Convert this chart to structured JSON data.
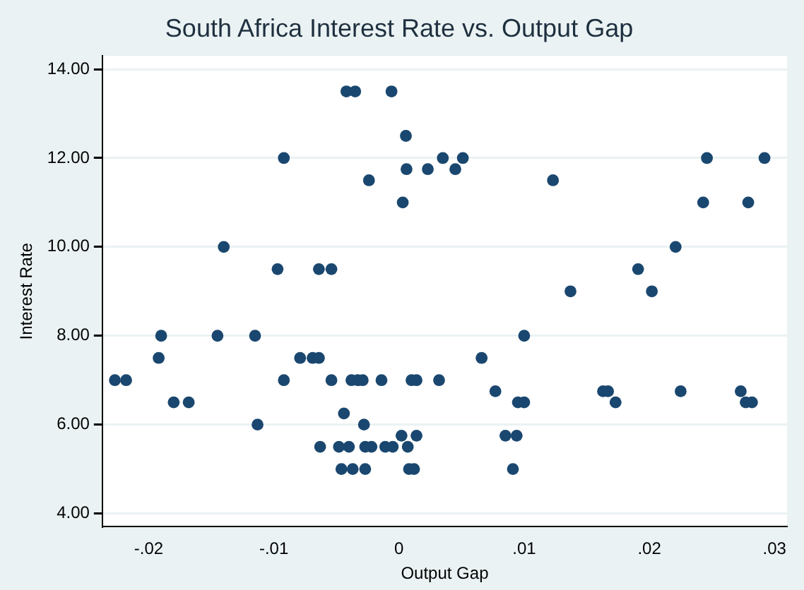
{
  "chart_data": {
    "type": "scatter",
    "title": "South Africa Interest Rate vs. Output Gap",
    "xlabel": "Output Gap",
    "ylabel": "Interest Rate",
    "xlim": [
      -0.0237,
      0.031
    ],
    "ylim": [
      3.7,
      14.3
    ],
    "xticks": [
      {
        "value": -0.02,
        "label": "-.02"
      },
      {
        "value": -0.01,
        "label": "-.01"
      },
      0,
      {
        "value": 0.01,
        "label": ".01"
      },
      {
        "value": 0.02,
        "label": ".02"
      },
      {
        "value": 0.03,
        "label": ".03"
      }
    ],
    "yticks": [
      {
        "value": 4,
        "label": "4.00"
      },
      {
        "value": 6,
        "label": "6.00"
      },
      {
        "value": 8,
        "label": "8.00"
      },
      {
        "value": 10,
        "label": "10.00"
      },
      {
        "value": 12,
        "label": "12.00"
      },
      {
        "value": 14,
        "label": "14.00"
      }
    ],
    "grid": "y",
    "marker": "circle",
    "legend": false,
    "series": [
      {
        "color": "#1a476f",
        "x": [
          -0.0227,
          -0.0218,
          -0.0192,
          -0.019,
          -0.018,
          -0.0168,
          -0.0145,
          -0.014,
          -0.0115,
          -0.0113,
          -0.0097,
          -0.0092,
          -0.0092,
          -0.0079,
          -0.0069,
          -0.0064,
          -0.0064,
          -0.0063,
          -0.0042,
          -0.0035,
          -0.0006,
          0.00055,
          0.0035,
          0.0051,
          0.0006,
          0.0023,
          0.0045,
          -0.0024,
          0.0003,
          -0.0054,
          0.01,
          0.0066,
          -0.0054,
          -0.0038,
          -0.0033,
          -0.0029,
          -0.0014,
          0.001,
          0.0014,
          0.0032,
          0.0077,
          0.0095,
          0.01,
          -0.0044,
          -0.0028,
          0.0002,
          0.0014,
          0.0085,
          0.0094,
          -0.0048,
          -0.004,
          -0.0027,
          -0.0022,
          -0.0011,
          -0.0005,
          0.0007,
          -0.0046,
          -0.0037,
          -0.0027,
          0.0008,
          0.0012,
          0.0091,
          0.0123,
          0.0246,
          0.0292,
          0.0243,
          0.0279,
          0.0221,
          0.0191,
          0.0137,
          0.0202,
          0.0163,
          0.0167,
          0.0225,
          0.0273,
          0.0173,
          0.0277,
          0.0282
        ],
        "values": [
          7,
          7,
          7.5,
          8,
          6.5,
          6.5,
          8,
          10,
          8,
          6,
          9.5,
          12,
          7,
          7.5,
          7.5,
          9.5,
          7.5,
          5.5,
          13.5,
          13.5,
          13.5,
          12.5,
          12,
          12,
          11.75,
          11.75,
          11.75,
          11.5,
          11,
          9.5,
          8,
          7.5,
          7,
          7,
          7,
          7,
          7,
          7,
          7,
          7,
          6.75,
          6.5,
          6.5,
          6.25,
          6,
          5.75,
          5.75,
          5.75,
          5.75,
          5.5,
          5.5,
          5.5,
          5.5,
          5.5,
          5.5,
          5.5,
          5,
          5,
          5,
          5,
          5,
          5,
          11.5,
          12,
          12,
          11,
          11,
          10,
          9.5,
          9,
          9,
          6.75,
          6.75,
          6.75,
          6.75,
          6.5,
          6.5,
          6.5
        ]
      }
    ]
  }
}
